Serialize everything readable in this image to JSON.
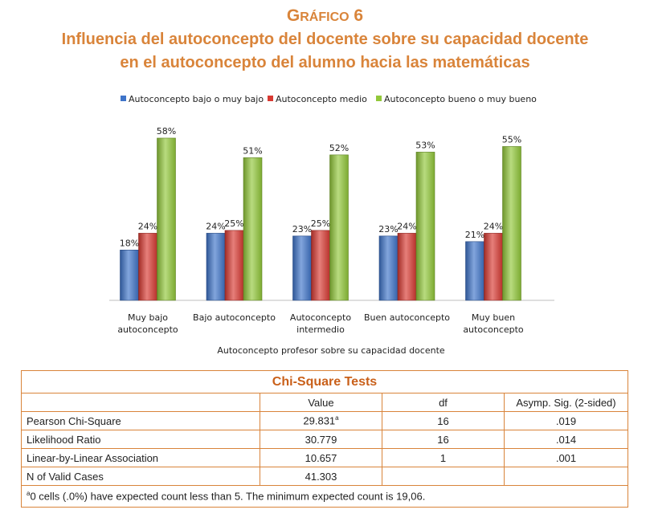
{
  "title": {
    "prefix": "G",
    "word_rest": "RÁFICO",
    "number": "6",
    "line1": "Influencia del autoconcepto del docente sobre su capacidad docente",
    "line2": "en el autoconcepto del alumno hacia las matemáticas"
  },
  "chart_data": {
    "type": "bar",
    "categories": [
      [
        "Muy bajo",
        "autoconcepto"
      ],
      [
        "Bajo autoconcepto"
      ],
      [
        "Autoconcepto",
        "intermedio"
      ],
      [
        "Buen autoconcepto"
      ],
      [
        "Muy buen",
        "autoconcepto"
      ]
    ],
    "series": [
      {
        "name": "Autoconcepto bajo o muy bajo",
        "color": "#3f74c9",
        "values": [
          18,
          24,
          23,
          23,
          21
        ]
      },
      {
        "name": "Autoconcepto medio",
        "color": "#d83a32",
        "values": [
          24,
          25,
          25,
          24,
          24
        ]
      },
      {
        "name": "Autoconcepto bueno o muy bueno",
        "color": "#92c83a",
        "values": [
          58,
          51,
          52,
          53,
          55
        ]
      }
    ],
    "value_suffix": "%",
    "xlabel": "Autoconcepto profesor sobre su capacidad docente",
    "ylabel": "",
    "ylim": [
      0,
      60
    ],
    "legend": "top",
    "grid": false
  },
  "table": {
    "caption": "Chi-Square Tests",
    "headers": [
      "",
      "Value",
      "df",
      "Asymp. Sig. (2-sided)"
    ],
    "rows": [
      {
        "label": "Pearson Chi-Square",
        "value": "29.831",
        "sup": "a",
        "df": "16",
        "sig": ".019"
      },
      {
        "label": "Likelihood Ratio",
        "value": "30.779",
        "sup": "",
        "df": "16",
        "sig": ".014"
      },
      {
        "label": "Linear-by-Linear Association",
        "value": "10.657",
        "sup": "",
        "df": "1",
        "sig": ".001"
      },
      {
        "label": "N of Valid Cases",
        "value": "41.303",
        "sup": "",
        "df": "",
        "sig": ""
      }
    ],
    "footnote_mark": "a",
    "footnote": "0 cells (.0%) have expected count less than 5. The minimum expected count is 19,06."
  }
}
